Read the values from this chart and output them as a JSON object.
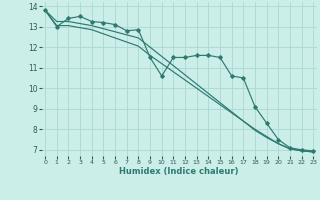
{
  "xlabel": "Humidex (Indice chaleur)",
  "bg_color": "#cceee8",
  "grid_color": "#aad8d3",
  "line_color": "#2d7a72",
  "xlim": [
    0,
    23
  ],
  "ylim": [
    7,
    14
  ],
  "yticks": [
    7,
    8,
    9,
    10,
    11,
    12,
    13,
    14
  ],
  "xticks": [
    0,
    1,
    2,
    3,
    4,
    5,
    6,
    7,
    8,
    9,
    10,
    11,
    12,
    13,
    14,
    15,
    16,
    17,
    18,
    19,
    20,
    21,
    22,
    23
  ],
  "series_marker": [
    13.8,
    13.0,
    13.4,
    13.5,
    13.25,
    13.2,
    13.1,
    12.8,
    12.85,
    11.5,
    10.6,
    11.5,
    11.5,
    11.6,
    11.6,
    11.5,
    10.6,
    10.5,
    9.1,
    8.3,
    7.5,
    7.1,
    7.0,
    6.95
  ],
  "series_line1": [
    13.8,
    13.25,
    13.25,
    13.15,
    13.05,
    12.9,
    12.75,
    12.6,
    12.45,
    12.0,
    11.55,
    11.1,
    10.65,
    10.2,
    9.75,
    9.3,
    8.85,
    8.4,
    7.95,
    7.6,
    7.3,
    7.05,
    6.95,
    6.9
  ],
  "series_line2": [
    13.8,
    13.05,
    13.05,
    12.95,
    12.85,
    12.65,
    12.45,
    12.25,
    12.05,
    11.6,
    11.2,
    10.8,
    10.4,
    10.0,
    9.6,
    9.2,
    8.8,
    8.4,
    8.0,
    7.65,
    7.3,
    7.05,
    6.95,
    6.9
  ]
}
